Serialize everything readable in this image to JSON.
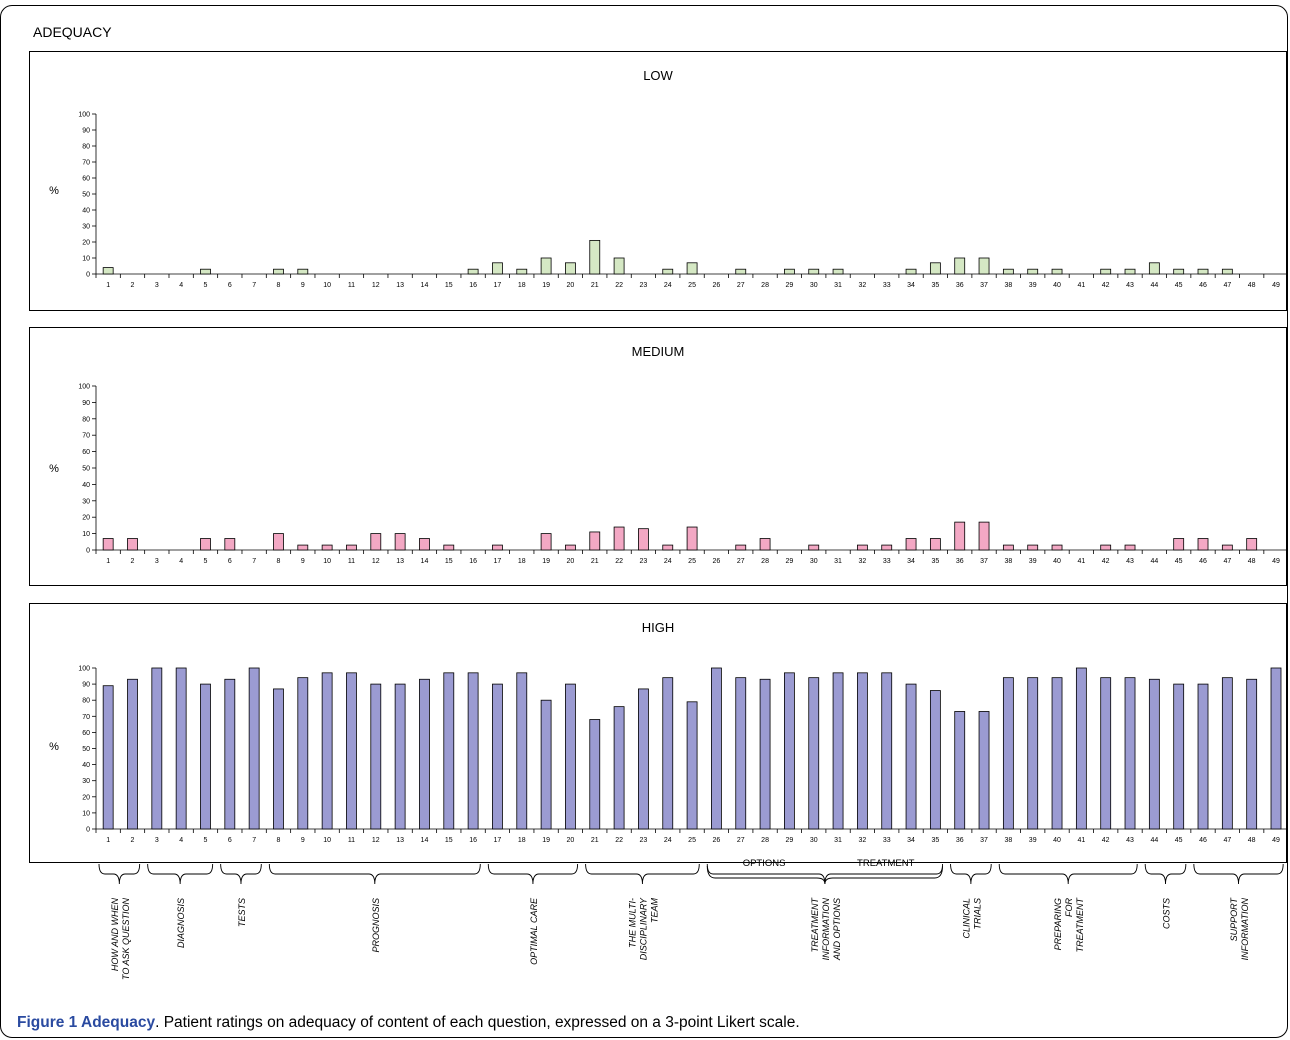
{
  "page_title": "ADEQUACY",
  "caption": {
    "label": "Figure 1 Adequacy",
    "text": ". Patient ratings on adequacy of content of each question, expressed on a 3-point Likert scale."
  },
  "colors": {
    "low_fill": "#d5e8c4",
    "medium_fill": "#f3a8c4",
    "high_fill": "#9b9bd2"
  },
  "chart_data": [
    {
      "type": "bar",
      "title": "LOW",
      "ylabel": "%",
      "xlabel": "",
      "ylim": [
        0,
        100
      ],
      "yticks": [
        0,
        10,
        20,
        30,
        40,
        50,
        60,
        70,
        80,
        90,
        100
      ],
      "categories": [
        "1",
        "2",
        "3",
        "4",
        "5",
        "6",
        "7",
        "8",
        "9",
        "10",
        "11",
        "12",
        "13",
        "14",
        "15",
        "16",
        "17",
        "18",
        "19",
        "20",
        "21",
        "22",
        "23",
        "24",
        "25",
        "26",
        "27",
        "28",
        "29",
        "30",
        "31",
        "32",
        "33",
        "34",
        "35",
        "36",
        "37",
        "38",
        "39",
        "40",
        "41",
        "42",
        "43",
        "44",
        "45",
        "46",
        "47",
        "48",
        "49"
      ],
      "values": [
        4,
        0,
        0,
        0,
        3,
        0,
        0,
        3,
        3,
        0,
        0,
        0,
        0,
        0,
        0,
        3,
        7,
        3,
        10,
        7,
        21,
        10,
        0,
        3,
        7,
        0,
        3,
        0,
        3,
        3,
        3,
        0,
        0,
        3,
        7,
        10,
        10,
        3,
        3,
        3,
        0,
        3,
        3,
        7,
        3,
        3,
        3,
        0,
        0
      ],
      "grid": false,
      "legend": "none"
    },
    {
      "type": "bar",
      "title": "MEDIUM",
      "ylabel": "%",
      "xlabel": "",
      "ylim": [
        0,
        100
      ],
      "yticks": [
        0,
        10,
        20,
        30,
        40,
        50,
        60,
        70,
        80,
        90,
        100
      ],
      "categories": [
        "1",
        "2",
        "3",
        "4",
        "5",
        "6",
        "7",
        "8",
        "9",
        "10",
        "11",
        "12",
        "13",
        "14",
        "15",
        "16",
        "17",
        "18",
        "19",
        "20",
        "21",
        "22",
        "23",
        "24",
        "25",
        "26",
        "27",
        "28",
        "29",
        "30",
        "31",
        "32",
        "33",
        "34",
        "35",
        "36",
        "37",
        "38",
        "39",
        "40",
        "41",
        "42",
        "43",
        "44",
        "45",
        "46",
        "47",
        "48",
        "49"
      ],
      "values": [
        7,
        7,
        0,
        0,
        7,
        7,
        0,
        10,
        3,
        3,
        3,
        10,
        10,
        7,
        3,
        0,
        3,
        0,
        10,
        3,
        11,
        14,
        13,
        3,
        14,
        0,
        3,
        7,
        0,
        3,
        0,
        3,
        3,
        7,
        7,
        17,
        17,
        3,
        3,
        3,
        0,
        3,
        3,
        0,
        7,
        7,
        3,
        7,
        0
      ],
      "grid": false,
      "legend": "none"
    },
    {
      "type": "bar",
      "title": "HIGH",
      "ylabel": "%",
      "xlabel": "",
      "ylim": [
        0,
        100
      ],
      "yticks": [
        0,
        10,
        20,
        30,
        40,
        50,
        60,
        70,
        80,
        90,
        100
      ],
      "categories": [
        "1",
        "2",
        "3",
        "4",
        "5",
        "6",
        "7",
        "8",
        "9",
        "10",
        "11",
        "12",
        "13",
        "14",
        "15",
        "16",
        "17",
        "18",
        "19",
        "20",
        "21",
        "22",
        "23",
        "24",
        "25",
        "26",
        "27",
        "28",
        "29",
        "30",
        "31",
        "32",
        "33",
        "34",
        "35",
        "36",
        "37",
        "38",
        "39",
        "40",
        "41",
        "42",
        "43",
        "44",
        "45",
        "46",
        "47",
        "48",
        "49"
      ],
      "values": [
        89,
        93,
        100,
        100,
        90,
        93,
        100,
        87,
        94,
        97,
        97,
        90,
        90,
        93,
        97,
        97,
        90,
        97,
        80,
        90,
        68,
        76,
        87,
        94,
        79,
        100,
        94,
        93,
        97,
        94,
        97,
        97,
        97,
        90,
        86,
        73,
        73,
        94,
        94,
        94,
        100,
        94,
        94,
        93,
        90,
        90,
        94,
        93,
        100
      ],
      "grid": false,
      "legend": "none"
    }
  ],
  "question_groups": [
    {
      "lines": [
        "HOW AND WHEN",
        "TO ASK QUESTION"
      ],
      "from": 1,
      "to": 2
    },
    {
      "lines": [
        "DIAGNOSIS"
      ],
      "from": 3,
      "to": 5
    },
    {
      "lines": [
        "TESTS"
      ],
      "from": 6,
      "to": 7
    },
    {
      "lines": [
        "PROGNOSIS"
      ],
      "from": 8,
      "to": 16
    },
    {
      "lines": [
        "OPTIMAL CARE"
      ],
      "from": 17,
      "to": 20
    },
    {
      "lines": [
        "THE MULTI-",
        "DISCIPLINARY",
        "TEAM"
      ],
      "from": 21,
      "to": 25
    },
    {
      "lines": [
        "TREATMENT",
        "INFORMATION",
        "AND OPTIONS"
      ],
      "from": 26,
      "to": 35
    },
    {
      "lines": [
        "CLINICAL",
        "TRIALS"
      ],
      "from": 36,
      "to": 37
    },
    {
      "lines": [
        "PREPARING",
        "FOR",
        "TREATMENT"
      ],
      "from": 38,
      "to": 43
    },
    {
      "lines": [
        "COSTS"
      ],
      "from": 44,
      "to": 45
    },
    {
      "lines": [
        "SUPPORT",
        "INFORMATION"
      ],
      "from": 46,
      "to": 49
    }
  ],
  "subgroups": [
    {
      "label": "OPTIONS",
      "from": 26,
      "to": 30
    },
    {
      "label": "TREATMENT",
      "from": 31,
      "to": 35
    }
  ]
}
